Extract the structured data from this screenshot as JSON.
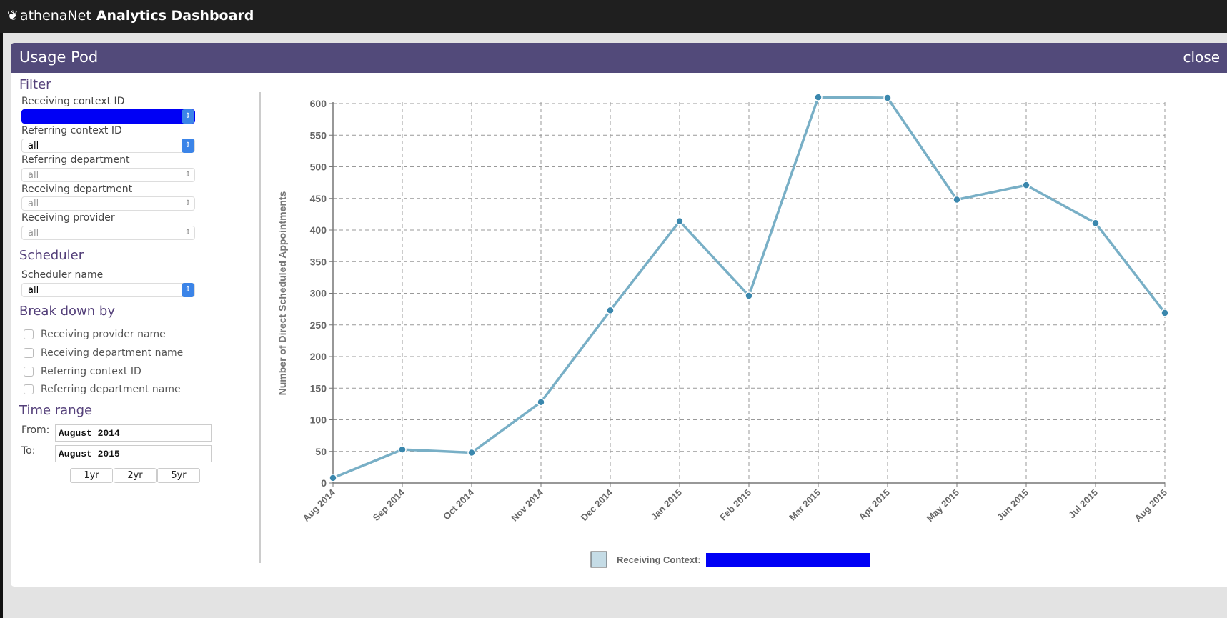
{
  "app": {
    "brand_logo_text": "athenaNet",
    "title": "Analytics Dashboard"
  },
  "pod": {
    "title": "Usage Pod",
    "close_label": "close"
  },
  "filter": {
    "heading": "Filter",
    "fields": [
      {
        "label": "Receiving context ID",
        "value": "",
        "enabled": true,
        "redacted": true
      },
      {
        "label": "Referring context ID",
        "value": "all",
        "enabled": true
      },
      {
        "label": "Referring department",
        "value": "all",
        "enabled": false
      },
      {
        "label": "Receiving department",
        "value": "all",
        "enabled": false
      },
      {
        "label": "Receiving provider",
        "value": "all",
        "enabled": false
      }
    ]
  },
  "scheduler": {
    "heading": "Scheduler",
    "label": "Scheduler name",
    "value": "all"
  },
  "breakdown": {
    "heading": "Break down by",
    "options": [
      {
        "label": "Receiving provider name",
        "checked": false
      },
      {
        "label": "Receiving department name",
        "checked": false
      },
      {
        "label": "Referring context ID",
        "checked": false
      },
      {
        "label": "Referring department name",
        "checked": false
      }
    ]
  },
  "time_range": {
    "heading": "Time range",
    "from_label": "From:",
    "from_value": "August 2014",
    "to_label": "To:",
    "to_value": "August 2015",
    "presets": [
      "1yr",
      "2yr",
      "5yr"
    ]
  },
  "colors": {
    "header": "#524a7a",
    "line": "#78afc6",
    "point": "#3a87ad",
    "redaction": "#0000f5"
  },
  "chart_data": {
    "type": "line",
    "categories": [
      "Aug 2014",
      "Sep 2014",
      "Oct 2014",
      "Nov 2014",
      "Dec 2014",
      "Jan 2015",
      "Feb 2015",
      "Mar 2015",
      "Apr 2015",
      "May 2015",
      "Jun 2015",
      "Jul 2015",
      "Aug 2015"
    ],
    "series": [
      {
        "values": [
          8,
          53,
          48,
          128,
          273,
          414,
          296,
          610,
          609,
          448,
          471,
          411,
          269
        ]
      }
    ],
    "ylabel": "Number of Direct Scheduled Appointments",
    "xlabel": "",
    "ylim": [
      0,
      600
    ],
    "yticks": [
      0,
      50,
      100,
      150,
      200,
      250,
      300,
      350,
      400,
      450,
      500,
      550,
      600
    ],
    "grid": true,
    "legend": {
      "label": "Receiving Context:",
      "placement": "bottom"
    }
  }
}
